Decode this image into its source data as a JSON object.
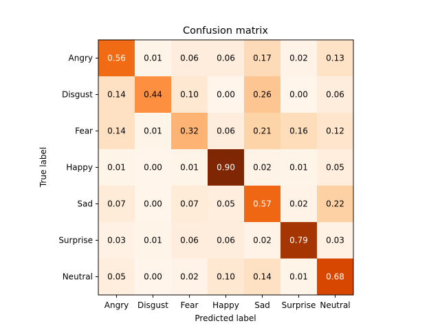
{
  "chart_data": {
    "type": "heatmap",
    "title": "Confusion matrix",
    "xlabel": "Predicted label",
    "ylabel": "True label",
    "x_categories": [
      "Angry",
      "Disgust",
      "Fear",
      "Happy",
      "Sad",
      "Surprise",
      "Neutral"
    ],
    "y_categories": [
      "Angry",
      "Disgust",
      "Fear",
      "Happy",
      "Sad",
      "Surprise",
      "Neutral"
    ],
    "values": [
      [
        0.56,
        0.01,
        0.06,
        0.06,
        0.17,
        0.02,
        0.13
      ],
      [
        0.14,
        0.44,
        0.1,
        0.0,
        0.26,
        0.0,
        0.06
      ],
      [
        0.14,
        0.01,
        0.32,
        0.06,
        0.21,
        0.16,
        0.12
      ],
      [
        0.01,
        0.0,
        0.01,
        0.9,
        0.02,
        0.01,
        0.05
      ],
      [
        0.07,
        0.0,
        0.07,
        0.05,
        0.57,
        0.02,
        0.22
      ],
      [
        0.03,
        0.01,
        0.06,
        0.06,
        0.02,
        0.79,
        0.03
      ],
      [
        0.05,
        0.0,
        0.02,
        0.1,
        0.14,
        0.01,
        0.68
      ]
    ],
    "colormap": "Oranges",
    "value_format": "2-decimals",
    "grid": false
  }
}
